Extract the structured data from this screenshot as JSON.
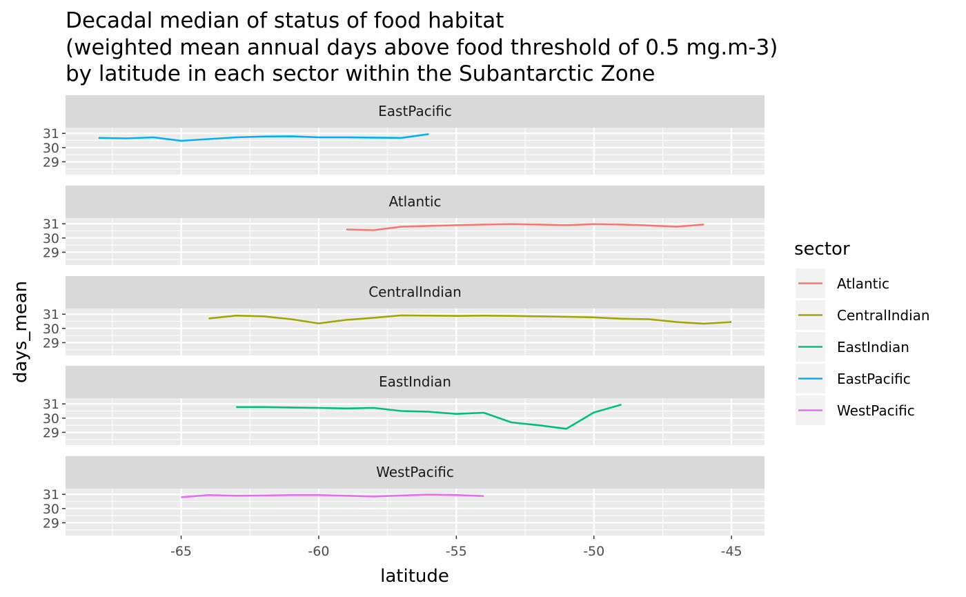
{
  "chart_data": {
    "type": "line",
    "title": [
      "Decadal median of status of food habitat",
      "(weighted mean annual days above food threshold of 0.5 mg.m-3)",
      "by latitude in each sector within the Subantarctic Zone"
    ],
    "xlabel": "latitude",
    "ylabel": "days_mean",
    "xlim": [
      -69.2,
      -43.8
    ],
    "ylim": [
      28.1,
      31.4
    ],
    "x_ticks": [
      -65,
      -60,
      -55,
      -50,
      -45
    ],
    "x_tick_labels": [
      "-65",
      "-60",
      "-55",
      "-50",
      "-45"
    ],
    "y_ticks": [
      29,
      30,
      31
    ],
    "y_tick_labels": [
      "29",
      "30",
      "31"
    ],
    "facet_order": [
      "EastPacific",
      "Atlantic",
      "CentralIndian",
      "EastIndian",
      "WestPacific"
    ],
    "grid": true,
    "legend": {
      "title": "sector",
      "position": "right"
    },
    "series": [
      {
        "name": "Atlantic",
        "color": "#F8766D",
        "x": [
          -59,
          -58,
          -57,
          -56,
          -55,
          -54,
          -53,
          -52,
          -51,
          -50,
          -49,
          -48,
          -47,
          -46
        ],
        "y": [
          30.6,
          30.55,
          30.8,
          30.85,
          30.9,
          30.95,
          30.98,
          30.95,
          30.9,
          30.98,
          30.95,
          30.88,
          30.8,
          30.95
        ]
      },
      {
        "name": "CentralIndian",
        "color": "#A3A500",
        "x": [
          -64,
          -63,
          -62,
          -61,
          -60,
          -59,
          -58,
          -57,
          -56,
          -55,
          -54,
          -53,
          -52,
          -51,
          -50,
          -49,
          -48,
          -47,
          -46,
          -45
        ],
        "y": [
          30.7,
          30.9,
          30.85,
          30.65,
          30.35,
          30.6,
          30.75,
          30.92,
          30.9,
          30.88,
          30.9,
          30.88,
          30.85,
          30.82,
          30.78,
          30.68,
          30.65,
          30.45,
          30.33,
          30.45
        ]
      },
      {
        "name": "EastIndian",
        "color": "#00BF7D",
        "x": [
          -63,
          -62,
          -61,
          -60,
          -59,
          -58,
          -57,
          -56,
          -55,
          -54,
          -53,
          -52,
          -51,
          -50,
          -49
        ],
        "y": [
          30.78,
          30.78,
          30.75,
          30.72,
          30.68,
          30.72,
          30.5,
          30.45,
          30.3,
          30.38,
          29.7,
          29.5,
          29.25,
          30.4,
          30.95
        ]
      },
      {
        "name": "EastPacific",
        "color": "#00B0F6",
        "x": [
          -68,
          -67,
          -66,
          -65,
          -64,
          -63,
          -62,
          -61,
          -60,
          -59,
          -58,
          -57,
          -56
        ],
        "y": [
          30.68,
          30.65,
          30.72,
          30.48,
          30.6,
          30.72,
          30.78,
          30.8,
          30.72,
          30.72,
          30.7,
          30.68,
          30.95
        ]
      },
      {
        "name": "WestPacific",
        "color": "#E76BF3",
        "x": [
          -65,
          -64,
          -63,
          -62,
          -61,
          -60,
          -59,
          -58,
          -57,
          -56,
          -55,
          -54
        ],
        "y": [
          30.8,
          30.95,
          30.9,
          30.92,
          30.95,
          30.95,
          30.9,
          30.85,
          30.92,
          30.98,
          30.95,
          30.88
        ]
      }
    ]
  }
}
